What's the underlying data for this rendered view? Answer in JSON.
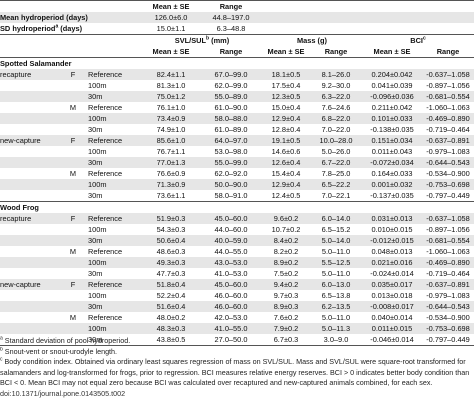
{
  "header": {
    "mean_se": "Mean ± SE",
    "range": "Range",
    "mean_hydro_label": "Mean hydroperiod (days)",
    "mean_hydro_mean": "126.0±6.0",
    "mean_hydro_range": "44.8–197.0",
    "sd_hydro_label": "SD hydroperiod",
    "sd_hydro_sup": "a",
    "sd_hydro_unit": " (days)",
    "sd_hydro_mean": "15.0±1.1",
    "sd_hydro_range": "6.3–48.8",
    "svl_label": "SVL/SUL",
    "svl_sup": "b",
    "svl_unit": " (mm)",
    "mass_label": "Mass (g)",
    "bci_label": "BCI",
    "bci_sup": "c"
  },
  "sections": [
    {
      "title": "Spotted Salamander",
      "rows": [
        {
          "group": "recapture",
          "sex": "F",
          "site": "Reference",
          "svl": "82.4±1.1",
          "svl_range": "67.0–99.0",
          "mass": "18.1±0.5",
          "mass_range": "8.1–26.0",
          "bci": "0.204±0.042",
          "bci_range": "-0.637–1.058"
        },
        {
          "group": "",
          "sex": "",
          "site": "100m",
          "svl": "81.3±1.0",
          "svl_range": "62.0–99.0",
          "mass": "17.5±0.4",
          "mass_range": "9.2–30.0",
          "bci": "0.041±0.039",
          "bci_range": "-0.897–1.056"
        },
        {
          "group": "",
          "sex": "",
          "site": "30m",
          "svl": "75.0±1.2",
          "svl_range": "55.0–89.0",
          "mass": "12.3±0.5",
          "mass_range": "6.3–22.0",
          "bci": "-0.096±0.036",
          "bci_range": "-0.681–0.554"
        },
        {
          "group": "",
          "sex": "M",
          "site": "Reference",
          "svl": "76.1±1.0",
          "svl_range": "61.0–90.0",
          "mass": "15.0±0.4",
          "mass_range": "7.6–24.6",
          "bci": "0.211±0.042",
          "bci_range": "-1.060–1.063"
        },
        {
          "group": "",
          "sex": "",
          "site": "100m",
          "svl": "73.4±0.9",
          "svl_range": "58.0–88.0",
          "mass": "12.9±0.4",
          "mass_range": "6.8–22.0",
          "bci": "0.101±0.033",
          "bci_range": "-0.469–0.890"
        },
        {
          "group": "",
          "sex": "",
          "site": "30m",
          "svl": "74.9±1.0",
          "svl_range": "61.0–89.0",
          "mass": "12.8±0.4",
          "mass_range": "7.0–22.0",
          "bci": "-0.138±0.035",
          "bci_range": "-0.719–0.464"
        },
        {
          "group": "new-capture",
          "sex": "F",
          "site": "Reference",
          "svl": "85.6±1.0",
          "svl_range": "64.0–97.0",
          "mass": "19.1±0.5",
          "mass_range": "10.0–28.0",
          "bci": "0.151±0.034",
          "bci_range": "-0.637–0.891"
        },
        {
          "group": "",
          "sex": "",
          "site": "100m",
          "svl": "76.7±1.1",
          "svl_range": "53.0–98.0",
          "mass": "14.6±0.6",
          "mass_range": "5.0–26.0",
          "bci": "0.011±0.043",
          "bci_range": "-0.979–1.083"
        },
        {
          "group": "",
          "sex": "",
          "site": "30m",
          "svl": "77.0±1.3",
          "svl_range": "55.0–99.0",
          "mass": "12.6±0.4",
          "mass_range": "6.7–22.0",
          "bci": "-0.072±0.034",
          "bci_range": "-0.644–0.543"
        },
        {
          "group": "",
          "sex": "M",
          "site": "Reference",
          "svl": "76.6±0.9",
          "svl_range": "62.0–92.0",
          "mass": "15.4±0.4",
          "mass_range": "7.8–25.0",
          "bci": "0.164±0.033",
          "bci_range": "-0.534–0.900"
        },
        {
          "group": "",
          "sex": "",
          "site": "100m",
          "svl": "71.3±0.9",
          "svl_range": "50.0–90.0",
          "mass": "12.9±0.4",
          "mass_range": "6.5–22.2",
          "bci": "0.001±0.032",
          "bci_range": "-0.753–0.698"
        },
        {
          "group": "",
          "sex": "",
          "site": "30m",
          "svl": "73.6±1.1",
          "svl_range": "58.0–91.0",
          "mass": "12.4±0.5",
          "mass_range": "7.0–22.1",
          "bci": "-0.137±0.035",
          "bci_range": "-0.797–0.449"
        }
      ]
    },
    {
      "title": "Wood Frog",
      "rows": [
        {
          "group": "recapture",
          "sex": "F",
          "site": "Reference",
          "svl": "51.9±0.3",
          "svl_range": "45.0–60.0",
          "mass": "9.6±0.2",
          "mass_range": "6.0–14.0",
          "bci": "0.031±0.013",
          "bci_range": "-0.637–1.058"
        },
        {
          "group": "",
          "sex": "",
          "site": "100m",
          "svl": "54.3±0.3",
          "svl_range": "44.0–60.0",
          "mass": "10.7±0.2",
          "mass_range": "6.5–15.2",
          "bci": "0.010±0.015",
          "bci_range": "-0.897–1.056"
        },
        {
          "group": "",
          "sex": "",
          "site": "30m",
          "svl": "50.6±0.4",
          "svl_range": "40.0–59.0",
          "mass": "8.4±0.2",
          "mass_range": "5.0–14.0",
          "bci": "-0.012±0.015",
          "bci_range": "-0.681–0.554"
        },
        {
          "group": "",
          "sex": "M",
          "site": "Reference",
          "svl": "48.6±0.3",
          "svl_range": "44.0–55.0",
          "mass": "8.2±0.2",
          "mass_range": "5.0–11.0",
          "bci": "0.048±0.013",
          "bci_range": "-1.060–1.063"
        },
        {
          "group": "",
          "sex": "",
          "site": "100m",
          "svl": "49.3±0.3",
          "svl_range": "43.0–53.0",
          "mass": "8.9±0.2",
          "mass_range": "5.5–12.5",
          "bci": "0.021±0.016",
          "bci_range": "-0.469–0.890"
        },
        {
          "group": "",
          "sex": "",
          "site": "30m",
          "svl": "47.7±0.3",
          "svl_range": "41.0–53.0",
          "mass": "7.5±0.2",
          "mass_range": "5.0–11.0",
          "bci": "-0.024±0.014",
          "bci_range": "-0.719–0.464"
        },
        {
          "group": "new-capture",
          "sex": "F",
          "site": "Reference",
          "svl": "51.8±0.4",
          "svl_range": "45.0–60.0",
          "mass": "9.4±0.2",
          "mass_range": "6.0–13.0",
          "bci": "0.035±0.017",
          "bci_range": "-0.637–0.891"
        },
        {
          "group": "",
          "sex": "",
          "site": "100m",
          "svl": "52.2±0.4",
          "svl_range": "46.0–60.0",
          "mass": "9.7±0.3",
          "mass_range": "6.5–13.8",
          "bci": "0.013±0.018",
          "bci_range": "-0.979–1.083"
        },
        {
          "group": "",
          "sex": "",
          "site": "30m",
          "svl": "51.6±0.4",
          "svl_range": "46.0–60.0",
          "mass": "8.9±0.3",
          "mass_range": "6.2–13.5",
          "bci": "-0.008±0.017",
          "bci_range": "-0.644–0.543"
        },
        {
          "group": "",
          "sex": "M",
          "site": "Reference",
          "svl": "48.0±0.2",
          "svl_range": "42.0–53.0",
          "mass": "7.6±0.2",
          "mass_range": "5.0–11.0",
          "bci": "0.040±0.014",
          "bci_range": "-0.534–0.900"
        },
        {
          "group": "",
          "sex": "",
          "site": "100m",
          "svl": "48.3±0.3",
          "svl_range": "41.0–55.0",
          "mass": "7.9±0.2",
          "mass_range": "5.0–11.3",
          "bci": "0.011±0.015",
          "bci_range": "-0.753–0.698"
        },
        {
          "group": "",
          "sex": "",
          "site": "30m",
          "svl": "43.8±0.5",
          "svl_range": "27.0–50.0",
          "mass": "6.7±0.3",
          "mass_range": "3.0–9.0",
          "bci": "-0.046±0.014",
          "bci_range": "-0.797–0.449"
        }
      ]
    }
  ],
  "footnotes": [
    {
      "sup": "a",
      "text": " Standard deviation of pool hydroperiod."
    },
    {
      "sup": "b",
      "text": " Snout-vent or snout-urodyle length."
    },
    {
      "sup": "c",
      "text": " Body condition index. Obtained via ordinary least squares regression of mass on SVL/SUL. Mass and SVL/SUL were square-root transformed for"
    },
    {
      "sup": "",
      "text": "salamanders and log-transformed for frogs, prior to regression. BCI measures relative energy reserves. BCI > 0 indicates better body condition than"
    },
    {
      "sup": "",
      "text": "BCI < 0. Mean BCI may not equal zero because BCI was calculated over recaptured and new-captured animals combined, for each sex."
    }
  ],
  "doi": "doi:10.1371/journal.pone.0143505.t002"
}
